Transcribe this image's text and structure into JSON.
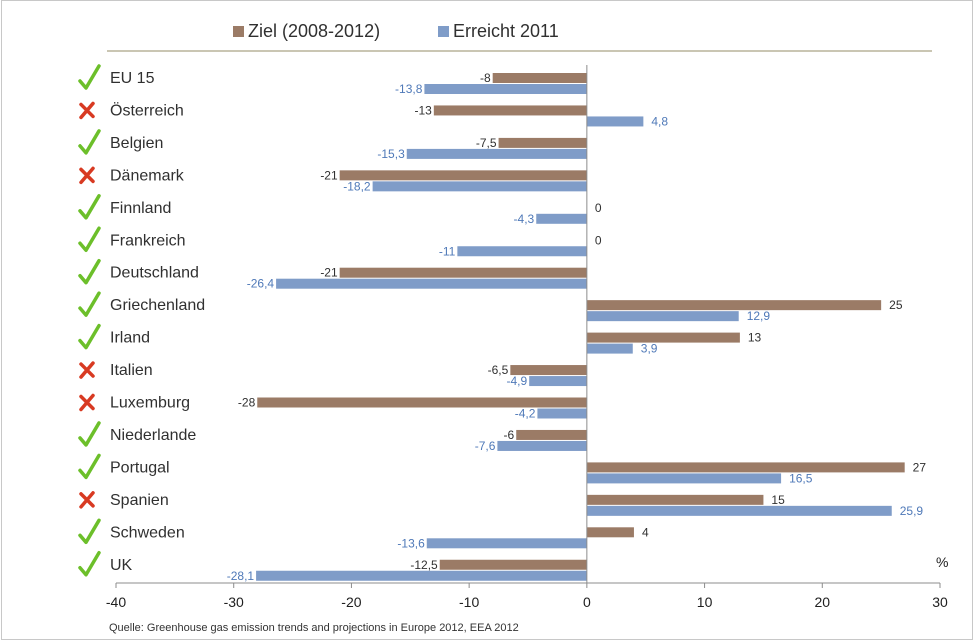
{
  "chart_data": {
    "type": "bar",
    "orientation": "horizontal",
    "categories": [
      "EU 15",
      "Österreich",
      "Belgien",
      "Dänemark",
      "Finnland",
      "Frankreich",
      "Deutschland",
      "Griechenland",
      "Irland",
      "Italien",
      "Luxemburg",
      "Niederlande",
      "Portugal",
      "Spanien",
      "Schweden",
      "UK"
    ],
    "status": [
      "check",
      "cross",
      "check",
      "cross",
      "check",
      "check",
      "check",
      "check",
      "check",
      "cross",
      "cross",
      "check",
      "check",
      "cross",
      "check",
      "check"
    ],
    "series": [
      {
        "name": "Ziel (2008-2012)",
        "color": "#9b7b66",
        "values": [
          -8,
          -13,
          -7.5,
          -21,
          0,
          0,
          -21,
          25,
          13,
          -6.5,
          -28,
          -6,
          27,
          15,
          4,
          -12.5
        ],
        "labels": [
          "-8",
          "-13",
          "-7,5",
          "-21",
          "0",
          "0",
          "-21",
          "25",
          "13",
          "-6,5",
          "-28",
          "-6",
          "27",
          "15",
          "4",
          "-12,5"
        ]
      },
      {
        "name": "Erreicht 2011",
        "color": "#7f9cc8",
        "values": [
          -13.8,
          4.8,
          -15.3,
          -18.2,
          -4.3,
          -11,
          -26.4,
          12.9,
          3.9,
          -4.9,
          -4.2,
          -7.6,
          16.5,
          25.9,
          -13.6,
          -28.1
        ],
        "labels": [
          "-13,8",
          "4,8",
          "-15,3",
          "-18,2",
          "-4,3",
          "-11",
          "-26,4",
          "12,9",
          "3,9",
          "-4,9",
          "-4,2",
          "-7,6",
          "16,5",
          "25,9",
          "-13,6",
          "-28,1"
        ]
      }
    ],
    "xlim": [
      -40,
      30
    ],
    "xticks": [
      "-40",
      "-30",
      "-20",
      "-10",
      "0",
      "10",
      "20",
      "30"
    ],
    "unit": "%",
    "legend_position": "top",
    "grid": false,
    "status_colors": {
      "check": "#6cbf2a",
      "cross": "#d83a22"
    }
  },
  "source": "Quelle: Greenhouse gas emission trends and projections in Europe 2012, EEA 2012"
}
